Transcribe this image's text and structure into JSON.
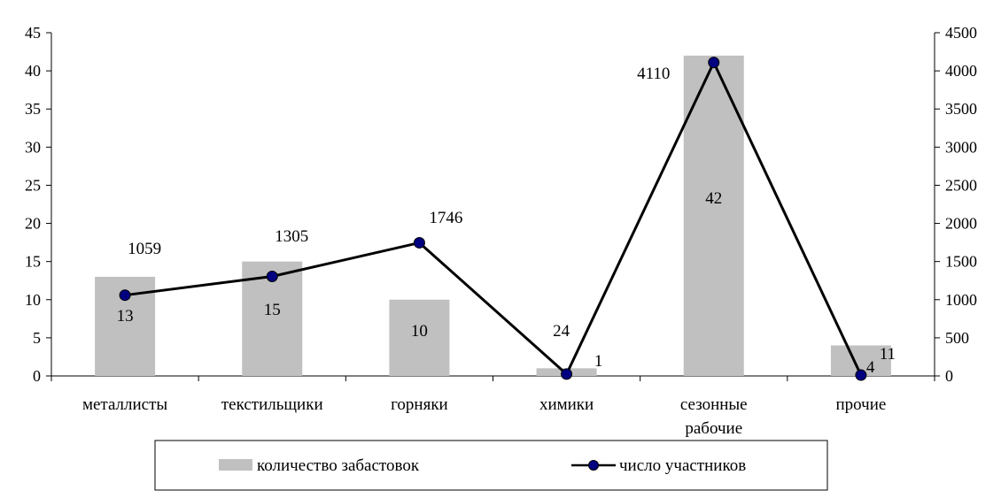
{
  "chart_data": {
    "type": "bar",
    "categories": [
      [
        "металлисты"
      ],
      [
        "текстильщики"
      ],
      [
        "горняки"
      ],
      [
        "химики"
      ],
      [
        "сезонные",
        "рабочие"
      ],
      [
        "прочие"
      ]
    ],
    "series": [
      {
        "name": "количество забастовок",
        "type": "bar",
        "axis": "left",
        "values": [
          13,
          15,
          10,
          1,
          42,
          4
        ],
        "labels": [
          "13",
          "15",
          "10",
          "1",
          "42",
          "4"
        ],
        "color": "#c0c0c0"
      },
      {
        "name": "число участников",
        "type": "line",
        "axis": "right",
        "values": [
          1059,
          1305,
          1746,
          24,
          4110,
          11
        ],
        "labels": [
          "1059",
          "1305",
          "1746",
          "24",
          "4110",
          "11"
        ],
        "color": "#000000",
        "marker_color": "#000080"
      }
    ],
    "y_left": {
      "min": 0,
      "max": 45,
      "step": 5
    },
    "y_right": {
      "min": 0,
      "max": 4500,
      "step": 500
    },
    "grid": false,
    "legend": "bottom"
  }
}
